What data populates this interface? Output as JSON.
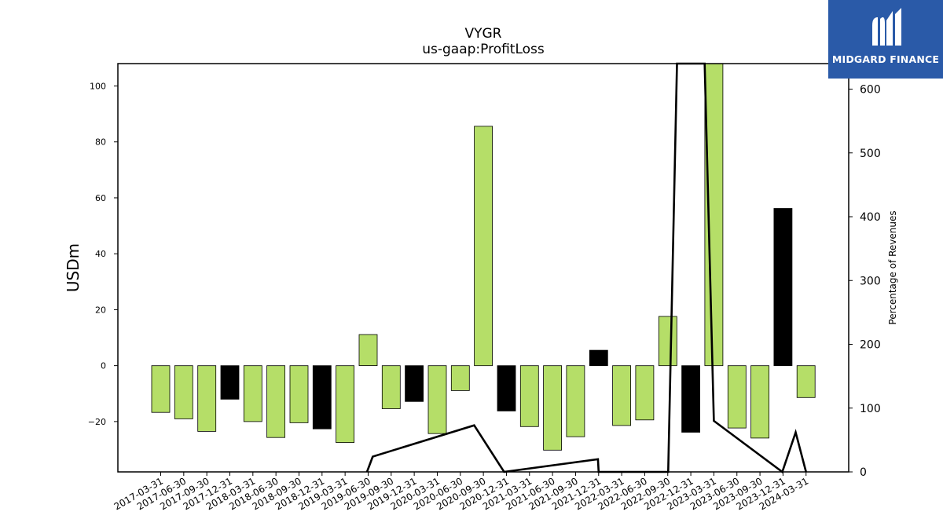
{
  "chart_data": {
    "type": "bar",
    "title": "VYGR",
    "subtitle": "us-gaap:ProfitLoss",
    "ylabel": "USDm",
    "y2label": "Percentage of Revenues",
    "ylim": [
      -38,
      108
    ],
    "y2lim": [
      0,
      640
    ],
    "yticks": [
      -20,
      0,
      20,
      40,
      60,
      80,
      100
    ],
    "y2ticks": [
      0,
      100,
      200,
      300,
      400,
      500,
      600
    ],
    "categories": [
      "2017-03-31",
      "2017-06-30",
      "2017-09-30",
      "2017-12-31",
      "2018-03-31",
      "2018-06-30",
      "2018-09-30",
      "2018-12-31",
      "2019-03-31",
      "2019-06-30",
      "2019-09-30",
      "2019-12-31",
      "2020-03-31",
      "2020-06-30",
      "2020-09-30",
      "2020-12-31",
      "2021-03-31",
      "2021-06-30",
      "2021-09-30",
      "2021-12-31",
      "2022-03-31",
      "2022-06-30",
      "2022-09-30",
      "2022-12-31",
      "2023-03-31",
      "2023-06-30",
      "2023-09-30",
      "2023-12-31",
      "2024-03-31"
    ],
    "values": [
      -16.7,
      -19.0,
      -23.5,
      -12.0,
      -20.0,
      -25.7,
      -20.4,
      -22.6,
      -27.5,
      11.1,
      -15.4,
      -12.8,
      -24.3,
      -8.9,
      85.6,
      -16.2,
      -21.8,
      -30.2,
      -25.4,
      5.5,
      -21.4,
      -19.4,
      17.6,
      -23.8,
      108,
      -22.3,
      -25.9,
      56.2,
      -11.4
    ],
    "bar_colors": [
      "#b5de68",
      "#b5de68",
      "#b5de68",
      "#000000",
      "#b5de68",
      "#b5de68",
      "#b5de68",
      "#000000",
      "#b5de68",
      "#b5de68",
      "#b5de68",
      "#000000",
      "#b5de68",
      "#b5de68",
      "#b5de68",
      "#000000",
      "#b5de68",
      "#b5de68",
      "#b5de68",
      "#000000",
      "#b5de68",
      "#b5de68",
      "#b5de68",
      "#000000",
      "#b5de68",
      "#b5de68",
      "#b5de68",
      "#000000",
      "#b5de68"
    ],
    "pct_line": {
      "x": [
        8.95,
        9.2,
        13.6,
        14.9,
        18.97,
        19.0,
        22.02,
        22.4,
        23.6,
        24.0,
        26.97,
        27.55
      ],
      "y": [
        0,
        24,
        73,
        0,
        20,
        0,
        0,
        640,
        640,
        80,
        0,
        62
      ]
    },
    "pct_line_after": {
      "x": [
        27.55,
        28.0
      ],
      "y": [
        62,
        0
      ]
    },
    "colors": {
      "positive": "#b5de68",
      "quarter_end": "#000000",
      "line": "#000000"
    }
  },
  "logo": {
    "text": "MIDGARD FINANCE"
  }
}
